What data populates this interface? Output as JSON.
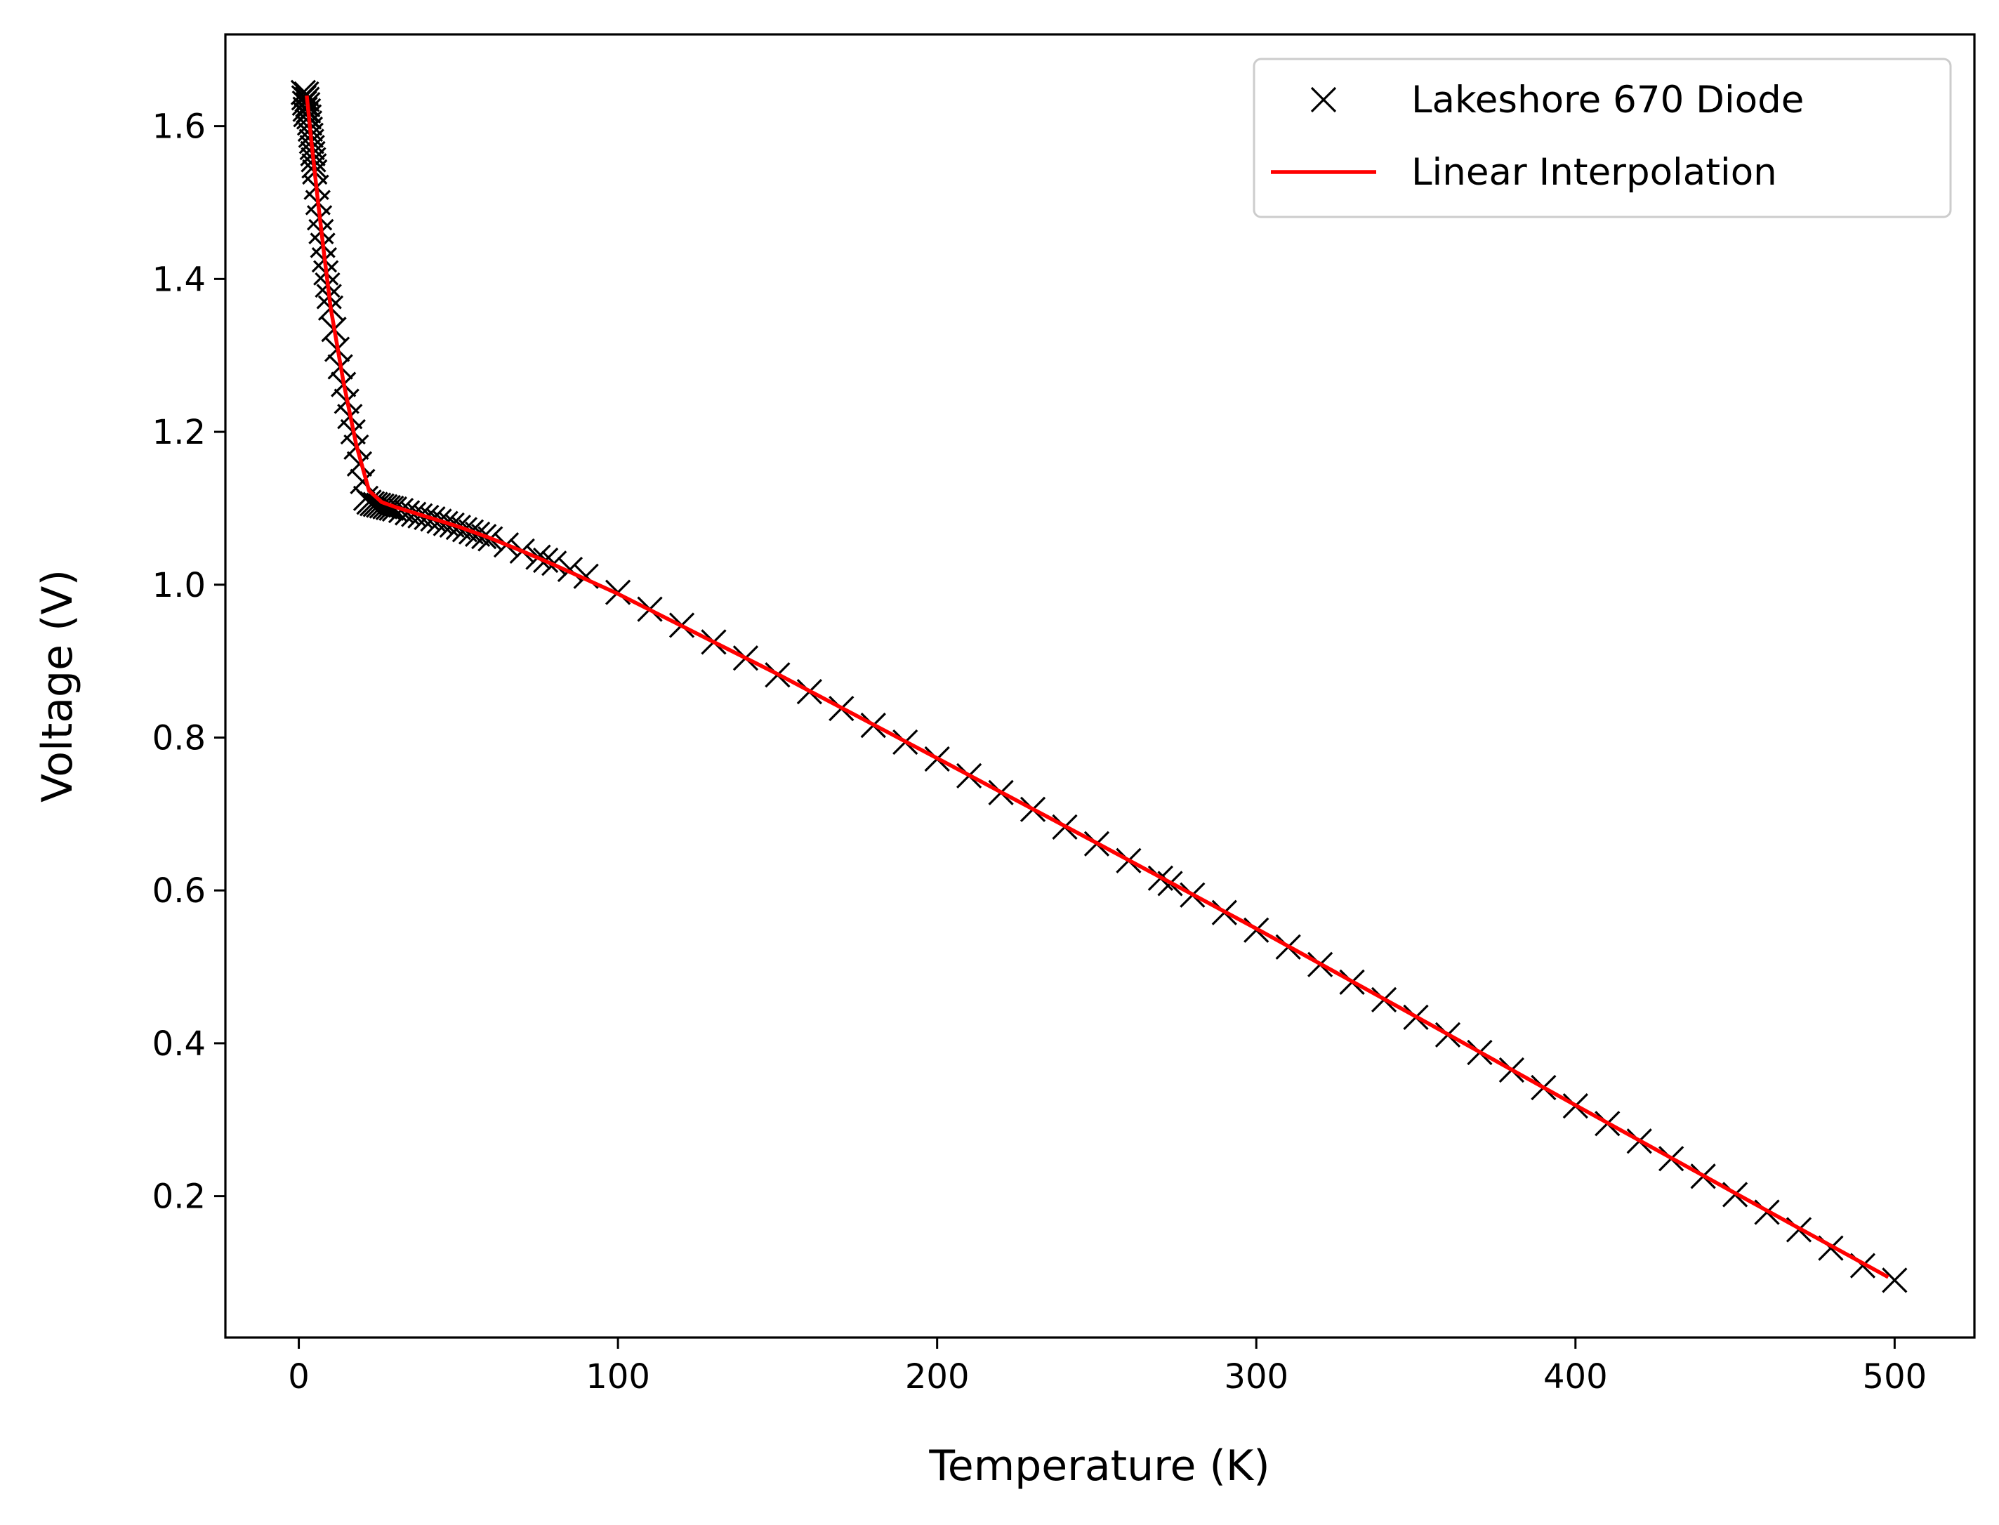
{
  "chart_data": {
    "type": "line",
    "title": "",
    "xlabel": "Temperature (K)",
    "ylabel": "Voltage (V)",
    "xlim": [
      -23,
      525
    ],
    "ylim": [
      0.015,
      1.72
    ],
    "xticks": [
      0,
      100,
      200,
      300,
      400,
      500
    ],
    "yticks": [
      0.2,
      0.4,
      0.6,
      0.8,
      1.0,
      1.2,
      1.4,
      1.6
    ],
    "xtick_labels": [
      "0",
      "100",
      "200",
      "300",
      "400",
      "500"
    ],
    "ytick_labels": [
      "0.2",
      "0.4",
      "0.6",
      "0.8",
      "1.0",
      "1.2",
      "1.4",
      "1.6"
    ],
    "grid": false,
    "legend": {
      "position": "top-right"
    },
    "series": [
      {
        "name": "Lakeshore 670 Diode",
        "kind": "scatter",
        "marker": "x",
        "color": "#000000",
        "x": [
          1.4,
          1.6,
          1.8,
          2.0,
          2.2,
          2.4,
          2.6,
          2.8,
          3.0,
          3.2,
          3.4,
          3.6,
          3.8,
          4.0,
          4.2,
          4.4,
          4.6,
          4.8,
          5.0,
          5.5,
          6.0,
          6.5,
          7.0,
          7.5,
          8.0,
          8.5,
          9.0,
          9.5,
          10,
          11,
          12,
          13,
          14,
          15,
          16,
          17,
          18,
          19,
          20,
          21,
          22,
          23,
          24,
          25,
          26,
          27,
          28,
          29,
          30,
          32,
          34,
          36,
          38,
          40,
          42,
          44,
          46,
          48,
          50,
          52,
          54,
          56,
          58,
          60,
          65,
          70,
          75,
          77.35,
          80,
          85,
          90,
          100,
          110,
          120,
          130,
          140,
          150,
          160,
          170,
          180,
          190,
          200,
          210,
          220,
          230,
          240,
          250,
          260,
          270,
          273,
          280,
          290,
          300,
          310,
          320,
          330,
          340,
          350,
          360,
          370,
          380,
          390,
          400,
          410,
          420,
          430,
          440,
          450,
          460,
          470,
          480,
          490,
          500
        ],
        "y": [
          1.644,
          1.637,
          1.63,
          1.622,
          1.615,
          1.642,
          1.635,
          1.628,
          1.62,
          1.612,
          1.604,
          1.596,
          1.588,
          1.58,
          1.572,
          1.564,
          1.556,
          1.548,
          1.54,
          1.52,
          1.5,
          1.48,
          1.462,
          1.444,
          1.425,
          1.408,
          1.392,
          1.377,
          1.362,
          1.334,
          1.308,
          1.285,
          1.262,
          1.24,
          1.22,
          1.2,
          1.18,
          1.158,
          1.135,
          1.113,
          1.108,
          1.106,
          1.105,
          1.104,
          1.103,
          1.102,
          1.101,
          1.1,
          1.099,
          1.097,
          1.094,
          1.092,
          1.09,
          1.088,
          1.086,
          1.083,
          1.08,
          1.078,
          1.075,
          1.072,
          1.069,
          1.066,
          1.063,
          1.06,
          1.052,
          1.044,
          1.036,
          1.032,
          1.028,
          1.02,
          1.011,
          0.99,
          0.968,
          0.947,
          0.925,
          0.904,
          0.882,
          0.86,
          0.838,
          0.816,
          0.794,
          0.772,
          0.75,
          0.728,
          0.706,
          0.683,
          0.661,
          0.639,
          0.616,
          0.609,
          0.594,
          0.571,
          0.548,
          0.526,
          0.503,
          0.48,
          0.457,
          0.434,
          0.411,
          0.388,
          0.365,
          0.342,
          0.318,
          0.295,
          0.272,
          0.249,
          0.226,
          0.202,
          0.179,
          0.156,
          0.132,
          0.109,
          0.09
        ]
      },
      {
        "name": "Linear Interpolation",
        "kind": "line",
        "color": "#ff0000",
        "x": [
          2.5,
          4,
          6,
          8,
          10,
          14,
          18,
          22,
          26,
          30,
          40,
          50,
          60,
          70,
          80,
          90,
          100,
          150,
          200,
          250,
          300,
          350,
          400,
          450,
          498
        ],
        "y": [
          1.64,
          1.578,
          1.502,
          1.43,
          1.362,
          1.265,
          1.183,
          1.123,
          1.108,
          1.102,
          1.089,
          1.076,
          1.061,
          1.044,
          1.026,
          1.007,
          0.988,
          0.883,
          0.773,
          0.662,
          0.55,
          0.435,
          0.319,
          0.204,
          0.094
        ]
      }
    ]
  }
}
